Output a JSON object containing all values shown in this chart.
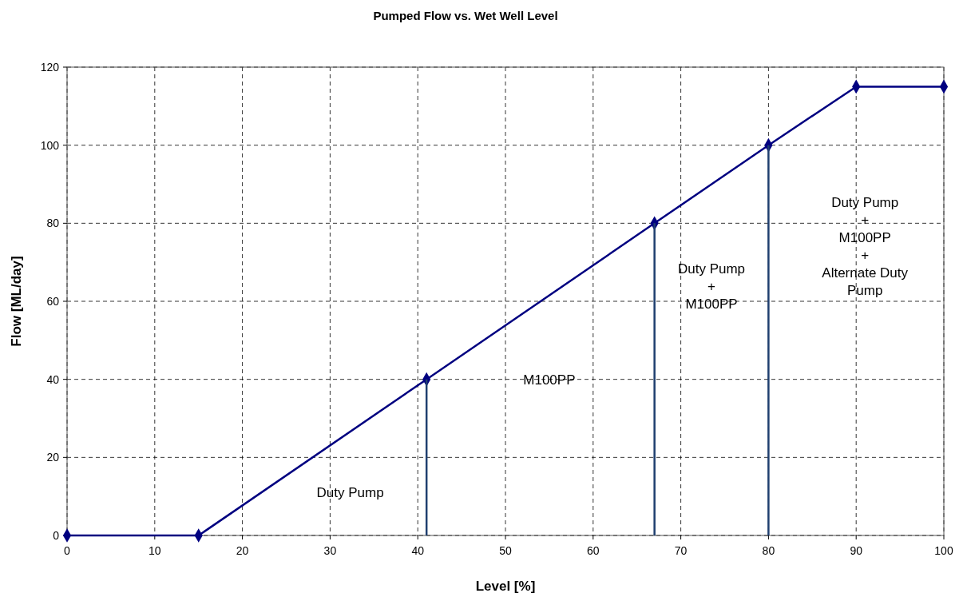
{
  "chart_data": {
    "type": "line",
    "title": "Pumped Flow vs. Wet Well Level",
    "xlabel": "Level [%]",
    "ylabel": "Flow [ML/day]",
    "xlim": [
      0,
      100
    ],
    "xticks": [
      0,
      10,
      20,
      30,
      40,
      50,
      60,
      70,
      80,
      90,
      100
    ],
    "ylim": [
      0,
      120
    ],
    "yticks": [
      0,
      20,
      40,
      60,
      80,
      100,
      120
    ],
    "grid": true,
    "marker": "diamond",
    "line_style": "solid",
    "series": [
      {
        "color": "#000080",
        "x": [
          0,
          15,
          41,
          67,
          80,
          90,
          100
        ],
        "values": [
          0,
          0,
          40,
          80,
          100,
          115,
          115
        ]
      },
      {
        "color": "#1f3f6f",
        "x": [
          41,
          41
        ],
        "values": [
          0,
          40
        ],
        "marker": "none"
      },
      {
        "color": "#1f3f6f",
        "x": [
          67,
          67
        ],
        "values": [
          0,
          80
        ],
        "marker": "none"
      },
      {
        "color": "#1f3f6f",
        "x": [
          80,
          80
        ],
        "values": [
          0,
          100
        ],
        "marker": "none"
      }
    ],
    "annotations": [
      "Duty Pump",
      "M100PP",
      "Duty Pump\n+\nM100PP",
      "Duty Pump\n+\nM100PP\n+\nAlternate Duty\nPump"
    ]
  }
}
